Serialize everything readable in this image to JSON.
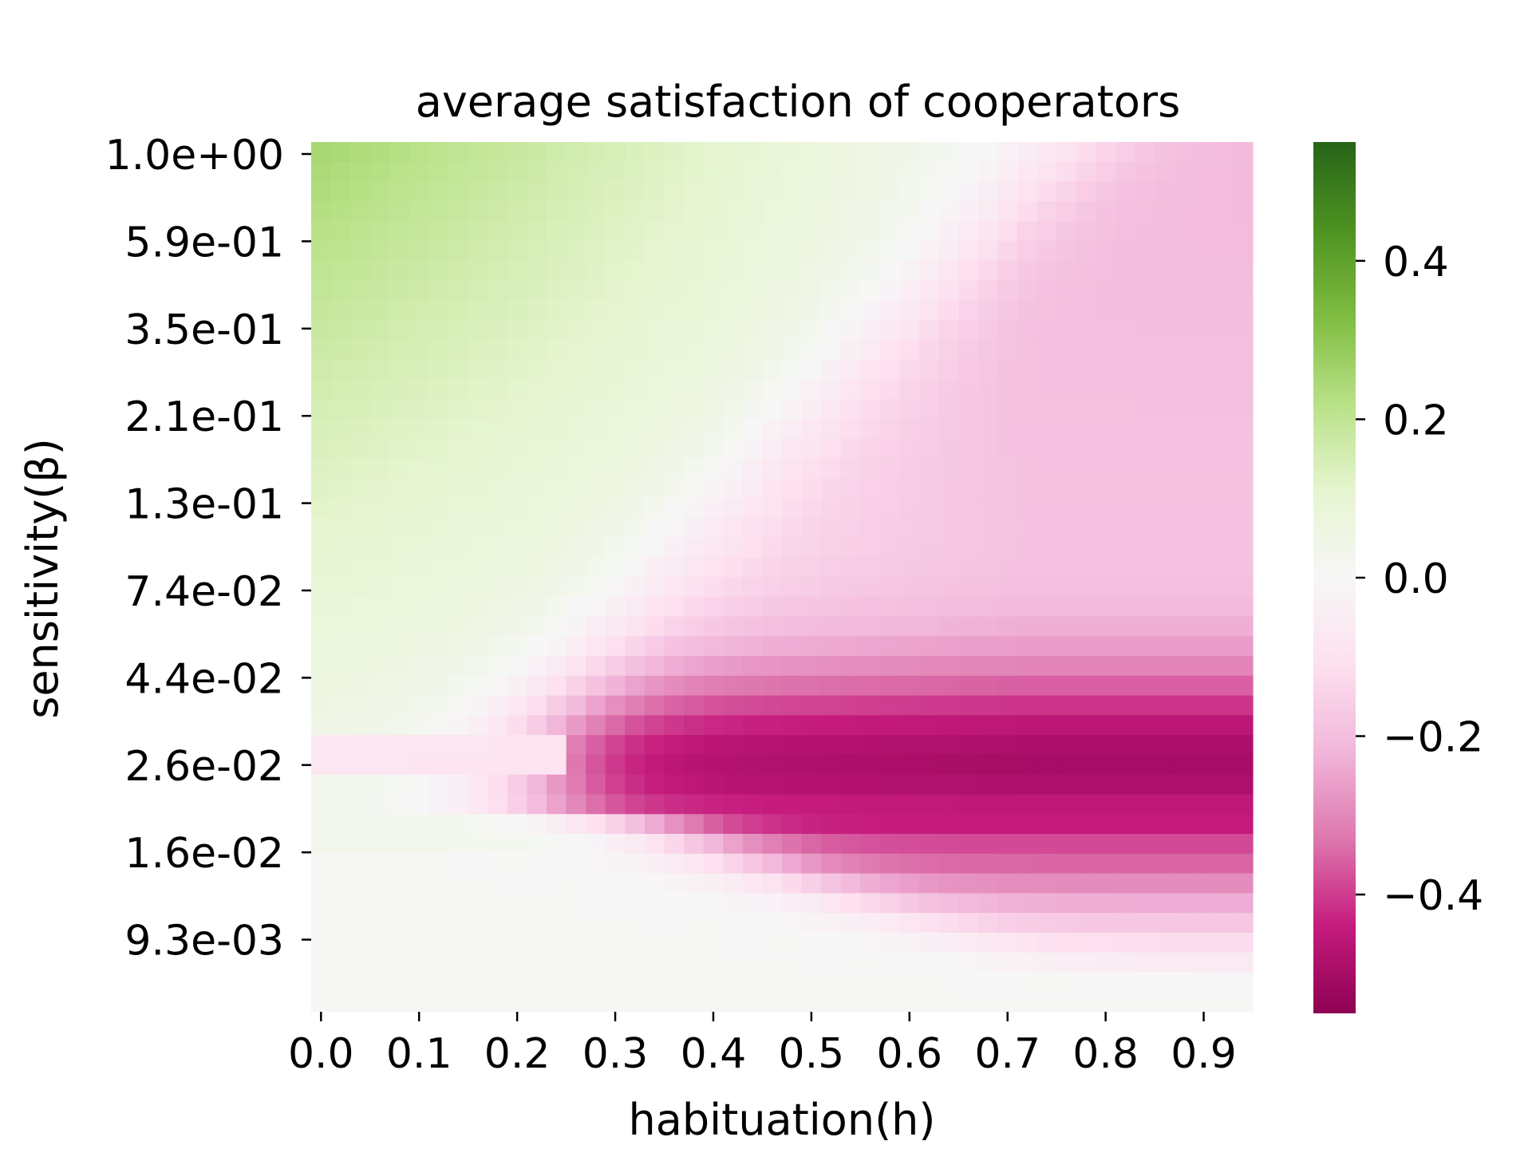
{
  "chart_data": {
    "type": "heatmap",
    "title": "average satisfaction of cooperators",
    "xlabel": "habituation(h)",
    "ylabel": "sensitivity(β)",
    "x_values": [
      0.0,
      0.02,
      0.04,
      0.06,
      0.08,
      0.1,
      0.12,
      0.14,
      0.16,
      0.18,
      0.2,
      0.22,
      0.24,
      0.26,
      0.28,
      0.3,
      0.32,
      0.34,
      0.36,
      0.38,
      0.4,
      0.42,
      0.44,
      0.46,
      0.48,
      0.5,
      0.52,
      0.54,
      0.56,
      0.58,
      0.6,
      0.62,
      0.64,
      0.66,
      0.68,
      0.7,
      0.72,
      0.74,
      0.76,
      0.78,
      0.8,
      0.82,
      0.84,
      0.86,
      0.88,
      0.9,
      0.92,
      0.94
    ],
    "x_tick_labels": [
      "0.0",
      "0.1",
      "0.2",
      "0.3",
      "0.4",
      "0.5",
      "0.6",
      "0.7",
      "0.8",
      "0.9"
    ],
    "x_tick_values": [
      0.0,
      0.1,
      0.2,
      0.3,
      0.4,
      0.5,
      0.6,
      0.7,
      0.8,
      0.9
    ],
    "y_tick_labels": [
      "1.0e+00",
      "5.9e-01",
      "3.5e-01",
      "2.1e-01",
      "1.3e-01",
      "7.4e-02",
      "4.4e-02",
      "2.6e-02",
      "1.6e-02",
      "9.3e-03"
    ],
    "y_tick_values": [
      1.0,
      0.59,
      0.35,
      0.21,
      0.13,
      0.074,
      0.044,
      0.026,
      0.016,
      0.0093
    ],
    "y_rows": 44,
    "y_order": "descending from top",
    "colormap": "PiYG",
    "colorbar": {
      "vmin": -0.55,
      "vmax": 0.55,
      "ticks": [
        0.4,
        0.2,
        0.0,
        -0.2,
        -0.4
      ],
      "tick_labels": [
        "0.4",
        "0.2",
        "0.0",
        "−0.2",
        "−0.4"
      ]
    },
    "z_description_regions": {
      "high_beta_low_h": 0.2,
      "high_beta_high_h": -0.2,
      "beta_0_02_to_0_07_high_h": -0.55,
      "low_beta": 0.0
    },
    "grid": false
  }
}
